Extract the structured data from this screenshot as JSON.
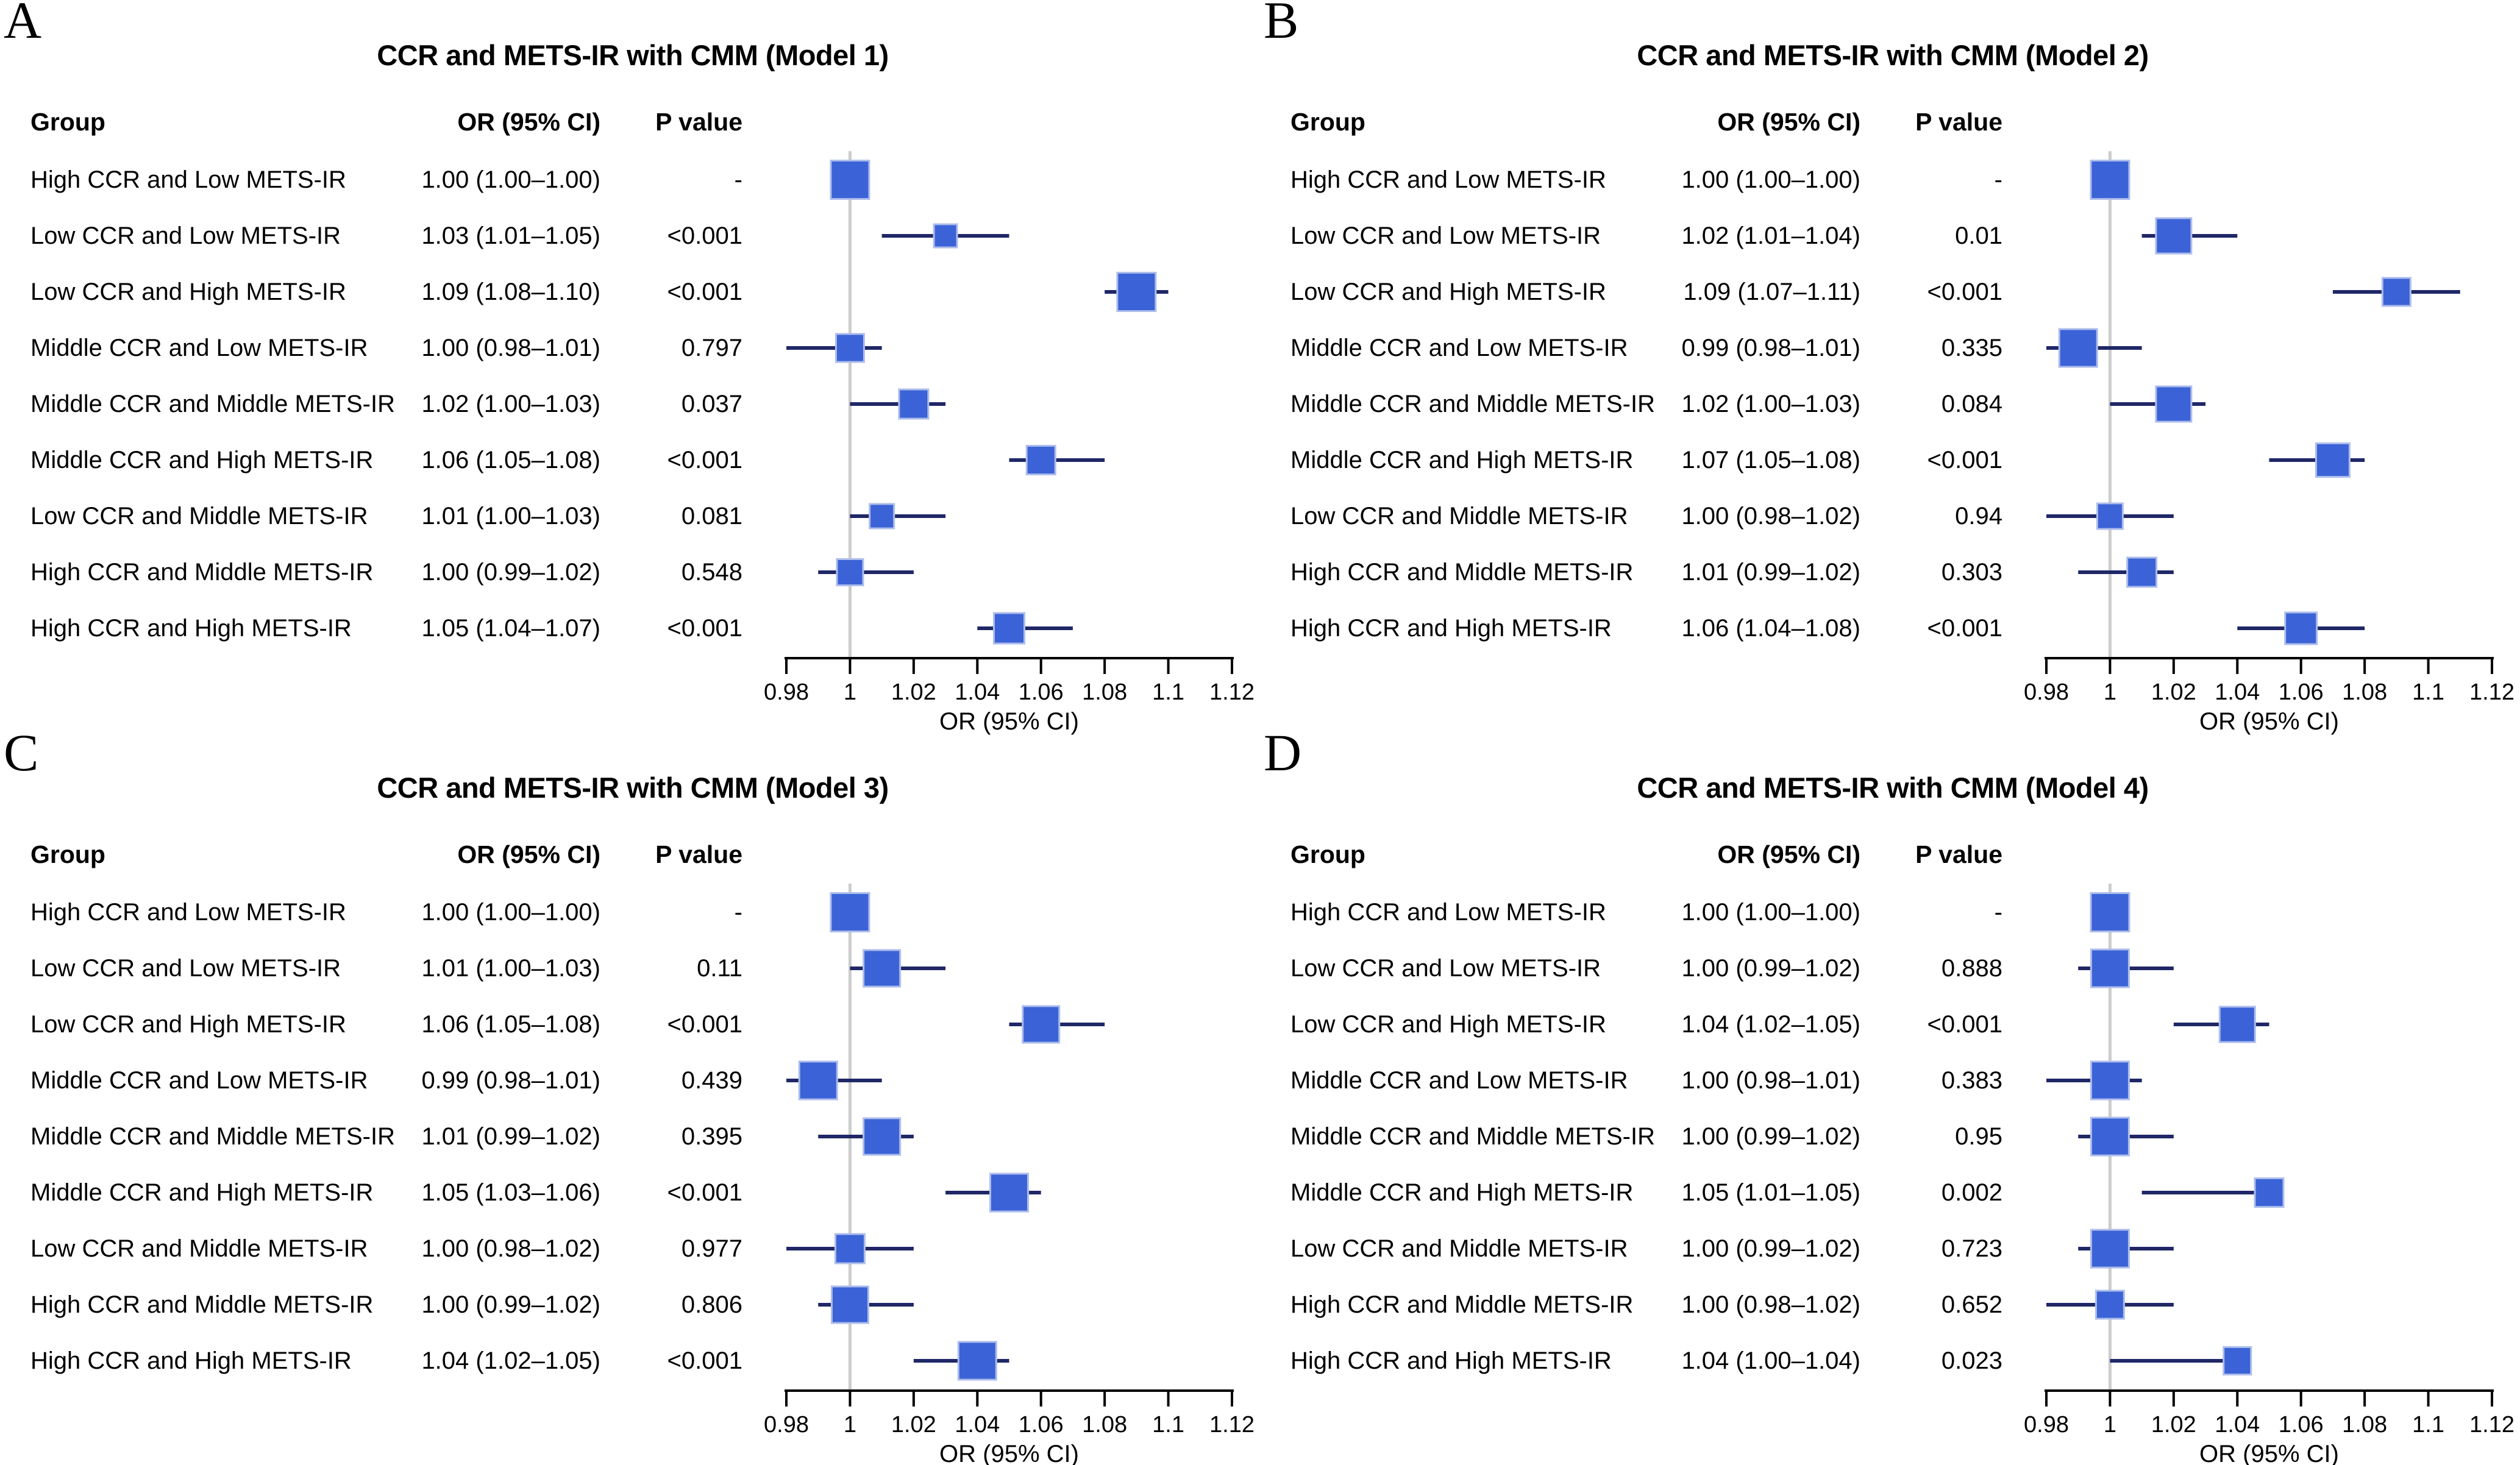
{
  "colors": {
    "square_fill": "#3B63D7",
    "square_border": "#AEBDEB",
    "ci_line": "#1F2766",
    "ref_line": "#CCCCCC",
    "axis_line": "#000000",
    "text": "#000000",
    "background": "#FFFFFF"
  },
  "chart_data": [
    {
      "type": "scatter",
      "variant": "forest-plot",
      "panel_letter": "A",
      "title": "CCR and METS-IR with CMM (Model 1)",
      "xlabel": "OR (95% CI)",
      "xlim": [
        0.98,
        1.12
      ],
      "ref_line": 1,
      "grid": false,
      "xticks": [
        0.98,
        1,
        1.02,
        1.04,
        1.06,
        1.08,
        1.1,
        1.12
      ],
      "xtick_labels": [
        "0.98",
        "1",
        "1.02",
        "1.04",
        "1.06",
        "1.08",
        "1.1",
        "1.12"
      ],
      "columns": {
        "group": "Group",
        "or": "OR (95% CI)",
        "p": "P value"
      },
      "rows": [
        {
          "group": "High CCR and Low METS-IR",
          "or_text": "1.00 (1.00–1.00)",
          "p_text": "-",
          "or": 1.0,
          "lo": 1.0,
          "hi": 1.0,
          "size": 63
        },
        {
          "group": "Low CCR and Low METS-IR",
          "or_text": "1.03 (1.01–1.05)",
          "p_text": "<0.001",
          "or": 1.03,
          "lo": 1.01,
          "hi": 1.05,
          "size": 38
        },
        {
          "group": "Low CCR and High METS-IR",
          "or_text": "1.09 (1.08–1.10)",
          "p_text": "<0.001",
          "or": 1.09,
          "lo": 1.08,
          "hi": 1.1,
          "size": 63
        },
        {
          "group": "Middle CCR and Low METS-IR",
          "or_text": "1.00 (0.98–1.01)",
          "p_text": "0.797",
          "or": 1.0,
          "lo": 0.98,
          "hi": 1.01,
          "size": 46
        },
        {
          "group": "Middle CCR and Middle METS-IR",
          "or_text": "1.02 (1.00–1.03)",
          "p_text": "0.037",
          "or": 1.02,
          "lo": 1.0,
          "hi": 1.03,
          "size": 48
        },
        {
          "group": "Middle CCR and High METS-IR",
          "or_text": "1.06 (1.05–1.08)",
          "p_text": "<0.001",
          "or": 1.06,
          "lo": 1.05,
          "hi": 1.08,
          "size": 47
        },
        {
          "group": "Low CCR and Middle METS-IR",
          "or_text": "1.01 (1.00–1.03)",
          "p_text": "0.081",
          "or": 1.01,
          "lo": 1.0,
          "hi": 1.03,
          "size": 40
        },
        {
          "group": "High CCR and Middle METS-IR",
          "or_text": "1.00 (0.99–1.02)",
          "p_text": "0.548",
          "or": 1.0,
          "lo": 0.99,
          "hi": 1.02,
          "size": 43
        },
        {
          "group": "High CCR and High METS-IR",
          "or_text": "1.05 (1.04–1.07)",
          "p_text": "<0.001",
          "or": 1.05,
          "lo": 1.04,
          "hi": 1.07,
          "size": 50
        }
      ]
    },
    {
      "type": "scatter",
      "variant": "forest-plot",
      "panel_letter": "B",
      "title": "CCR and METS-IR with CMM (Model 2)",
      "xlabel": "OR (95% CI)",
      "xlim": [
        0.98,
        1.12
      ],
      "ref_line": 1,
      "grid": false,
      "xticks": [
        0.98,
        1,
        1.02,
        1.04,
        1.06,
        1.08,
        1.1,
        1.12
      ],
      "xtick_labels": [
        "0.98",
        "1",
        "1.02",
        "1.04",
        "1.06",
        "1.08",
        "1.1",
        "1.12"
      ],
      "columns": {
        "group": "Group",
        "or": "OR (95% CI)",
        "p": "P value"
      },
      "rows": [
        {
          "group": "High CCR and Low METS-IR",
          "or_text": "1.00 (1.00–1.00)",
          "p_text": "-",
          "or": 1.0,
          "lo": 1.0,
          "hi": 1.0,
          "size": 63
        },
        {
          "group": "Low CCR and Low METS-IR",
          "or_text": "1.02 (1.01–1.04)",
          "p_text": "0.01",
          "or": 1.02,
          "lo": 1.01,
          "hi": 1.04,
          "size": 58
        },
        {
          "group": "Low CCR and High METS-IR",
          "or_text": "1.09 (1.07–1.11)",
          "p_text": "<0.001",
          "or": 1.09,
          "lo": 1.07,
          "hi": 1.11,
          "size": 46
        },
        {
          "group": "Middle CCR and Low METS-IR",
          "or_text": "0.99 (0.98–1.01)",
          "p_text": "0.335",
          "or": 0.99,
          "lo": 0.98,
          "hi": 1.01,
          "size": 62
        },
        {
          "group": "Middle CCR and Middle METS-IR",
          "or_text": "1.02 (1.00–1.03)",
          "p_text": "0.084",
          "or": 1.02,
          "lo": 1.0,
          "hi": 1.03,
          "size": 58
        },
        {
          "group": "Middle CCR and High METS-IR",
          "or_text": "1.07 (1.05–1.08)",
          "p_text": "<0.001",
          "or": 1.07,
          "lo": 1.05,
          "hi": 1.08,
          "size": 55
        },
        {
          "group": "Low CCR and Middle METS-IR",
          "or_text": "1.00 (0.98–1.02)",
          "p_text": "0.94",
          "or": 1.0,
          "lo": 0.98,
          "hi": 1.02,
          "size": 42
        },
        {
          "group": "High CCR and Middle METS-IR",
          "or_text": "1.01 (0.99–1.02)",
          "p_text": "0.303",
          "or": 1.01,
          "lo": 0.99,
          "hi": 1.02,
          "size": 48
        },
        {
          "group": "High CCR and High METS-IR",
          "or_text": "1.06 (1.04–1.08)",
          "p_text": "<0.001",
          "or": 1.06,
          "lo": 1.04,
          "hi": 1.08,
          "size": 52
        }
      ]
    },
    {
      "type": "scatter",
      "variant": "forest-plot",
      "panel_letter": "C",
      "title": "CCR and METS-IR with CMM (Model 3)",
      "xlabel": "OR (95% CI)",
      "xlim": [
        0.98,
        1.12
      ],
      "ref_line": 1,
      "grid": false,
      "xticks": [
        0.98,
        1,
        1.02,
        1.04,
        1.06,
        1.08,
        1.1,
        1.12
      ],
      "xtick_labels": [
        "0.98",
        "1",
        "1.02",
        "1.04",
        "1.06",
        "1.08",
        "1.1",
        "1.12"
      ],
      "columns": {
        "group": "Group",
        "or": "OR (95% CI)",
        "p": "P value"
      },
      "rows": [
        {
          "group": "High CCR and Low METS-IR",
          "or_text": "1.00 (1.00–1.00)",
          "p_text": "-",
          "or": 1.0,
          "lo": 1.0,
          "hi": 1.0,
          "size": 63
        },
        {
          "group": "Low CCR and Low METS-IR",
          "or_text": "1.01 (1.00–1.03)",
          "p_text": "0.11",
          "or": 1.01,
          "lo": 1.0,
          "hi": 1.03,
          "size": 60
        },
        {
          "group": "Low CCR and High METS-IR",
          "or_text": "1.06 (1.05–1.08)",
          "p_text": "<0.001",
          "or": 1.06,
          "lo": 1.05,
          "hi": 1.08,
          "size": 60
        },
        {
          "group": "Middle CCR and Low METS-IR",
          "or_text": "0.99 (0.98–1.01)",
          "p_text": "0.439",
          "or": 0.99,
          "lo": 0.98,
          "hi": 1.01,
          "size": 62
        },
        {
          "group": "Middle CCR and Middle METS-IR",
          "or_text": "1.01 (0.99–1.02)",
          "p_text": "0.395",
          "or": 1.01,
          "lo": 0.99,
          "hi": 1.02,
          "size": 60
        },
        {
          "group": "Middle CCR and High METS-IR",
          "or_text": "1.05 (1.03–1.06)",
          "p_text": "<0.001",
          "or": 1.05,
          "lo": 1.03,
          "hi": 1.06,
          "size": 62
        },
        {
          "group": "Low CCR and Middle METS-IR",
          "or_text": "1.00 (0.98–1.02)",
          "p_text": "0.977",
          "or": 1.0,
          "lo": 0.98,
          "hi": 1.02,
          "size": 48
        },
        {
          "group": "High CCR and Middle METS-IR",
          "or_text": "1.00 (0.99–1.02)",
          "p_text": "0.806",
          "or": 1.0,
          "lo": 0.99,
          "hi": 1.02,
          "size": 60
        },
        {
          "group": "High CCR and High METS-IR",
          "or_text": "1.04 (1.02–1.05)",
          "p_text": "<0.001",
          "or": 1.04,
          "lo": 1.02,
          "hi": 1.05,
          "size": 62
        }
      ]
    },
    {
      "type": "scatter",
      "variant": "forest-plot",
      "panel_letter": "D",
      "title": "CCR and METS-IR with CMM (Model 4)",
      "xlabel": "OR (95% CI)",
      "xlim": [
        0.98,
        1.12
      ],
      "ref_line": 1,
      "grid": false,
      "xticks": [
        0.98,
        1,
        1.02,
        1.04,
        1.06,
        1.08,
        1.1,
        1.12
      ],
      "xtick_labels": [
        "0.98",
        "1",
        "1.02",
        "1.04",
        "1.06",
        "1.08",
        "1.1",
        "1.12"
      ],
      "columns": {
        "group": "Group",
        "or": "OR (95% CI)",
        "p": "P value"
      },
      "rows": [
        {
          "group": "High CCR and Low METS-IR",
          "or_text": "1.00 (1.00–1.00)",
          "p_text": "-",
          "or": 1.0,
          "lo": 1.0,
          "hi": 1.0,
          "size": 63
        },
        {
          "group": "Low CCR and Low METS-IR",
          "or_text": "1.00 (0.99–1.02)",
          "p_text": "0.888",
          "or": 1.0,
          "lo": 0.99,
          "hi": 1.02,
          "size": 62
        },
        {
          "group": "Low CCR and High METS-IR",
          "or_text": "1.04 (1.02–1.05)",
          "p_text": "<0.001",
          "or": 1.04,
          "lo": 1.02,
          "hi": 1.05,
          "size": 58
        },
        {
          "group": "Middle CCR and Low METS-IR",
          "or_text": "1.00 (0.98–1.01)",
          "p_text": "0.383",
          "or": 1.0,
          "lo": 0.98,
          "hi": 1.01,
          "size": 62
        },
        {
          "group": "Middle CCR and Middle METS-IR",
          "or_text": "1.00 (0.99–1.02)",
          "p_text": "0.95",
          "or": 1.0,
          "lo": 0.99,
          "hi": 1.02,
          "size": 62
        },
        {
          "group": "Middle CCR and High METS-IR",
          "or_text": "1.05 (1.01–1.05)",
          "p_text": "0.002",
          "or": 1.05,
          "lo": 1.01,
          "hi": 1.05,
          "size": 47
        },
        {
          "group": "Low CCR and Middle METS-IR",
          "or_text": "1.00 (0.99–1.02)",
          "p_text": "0.723",
          "or": 1.0,
          "lo": 0.99,
          "hi": 1.02,
          "size": 62
        },
        {
          "group": "High CCR and Middle METS-IR",
          "or_text": "1.00 (0.98–1.02)",
          "p_text": "0.652",
          "or": 1.0,
          "lo": 0.98,
          "hi": 1.02,
          "size": 46
        },
        {
          "group": "High CCR and High METS-IR",
          "or_text": "1.04 (1.00–1.04)",
          "p_text": "0.023",
          "or": 1.04,
          "lo": 1.0,
          "hi": 1.04,
          "size": 45
        }
      ]
    }
  ],
  "layout_note_values": {
    "panel_positions": [
      [
        0,
        0
      ],
      [
        2067,
        0
      ],
      [
        0,
        1202
      ],
      [
        2067,
        1202
      ]
    ]
  }
}
